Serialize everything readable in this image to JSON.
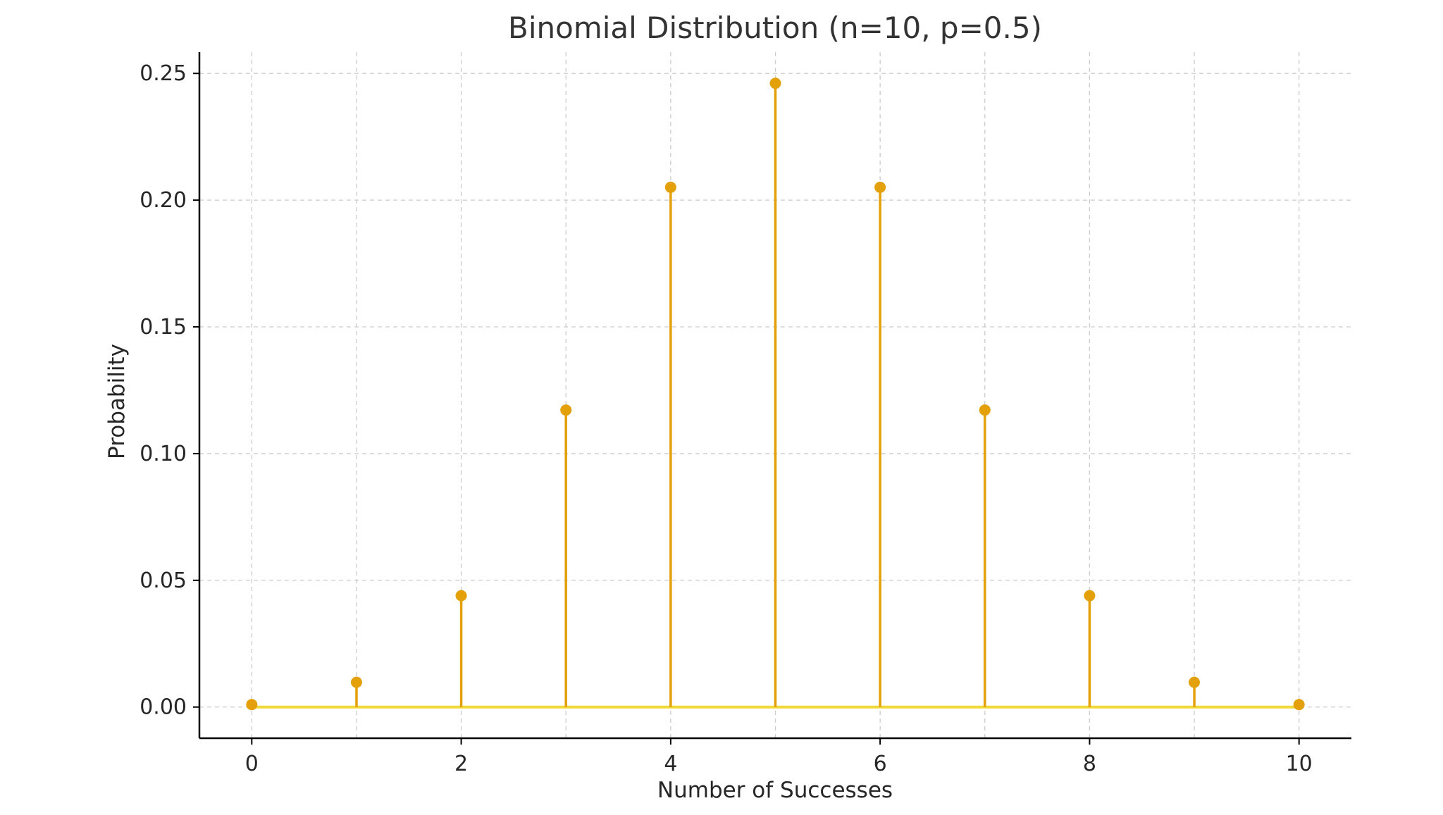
{
  "chart_data": {
    "type": "stem",
    "title": "Binomial Distribution (n=10, p=0.5)",
    "xlabel": "Number of Successes",
    "ylabel": "Probability",
    "x": [
      0,
      1,
      2,
      3,
      4,
      5,
      6,
      7,
      8,
      9,
      10
    ],
    "values": [
      0.000977,
      0.009766,
      0.043945,
      0.117188,
      0.205078,
      0.246094,
      0.205078,
      0.117188,
      0.043945,
      0.009766,
      0.000977
    ],
    "xlim": [
      -0.5,
      10.5
    ],
    "ylim": [
      -0.0123,
      0.2584
    ],
    "xticks": [
      0,
      2,
      4,
      6,
      8,
      10
    ],
    "xtick_labels": [
      "0",
      "2",
      "4",
      "6",
      "8",
      "10"
    ],
    "yticks": [
      0,
      0.05,
      0.1,
      0.15,
      0.2,
      0.25
    ],
    "ytick_labels": [
      "0.00",
      "0.05",
      "0.10",
      "0.15",
      "0.20",
      "0.25"
    ],
    "grid": true,
    "colors": {
      "stem": "#E3A008",
      "marker": "#E3A008",
      "baseline": "#F2D93B",
      "grid": "#CCCCCC",
      "axis": "#000000"
    }
  }
}
